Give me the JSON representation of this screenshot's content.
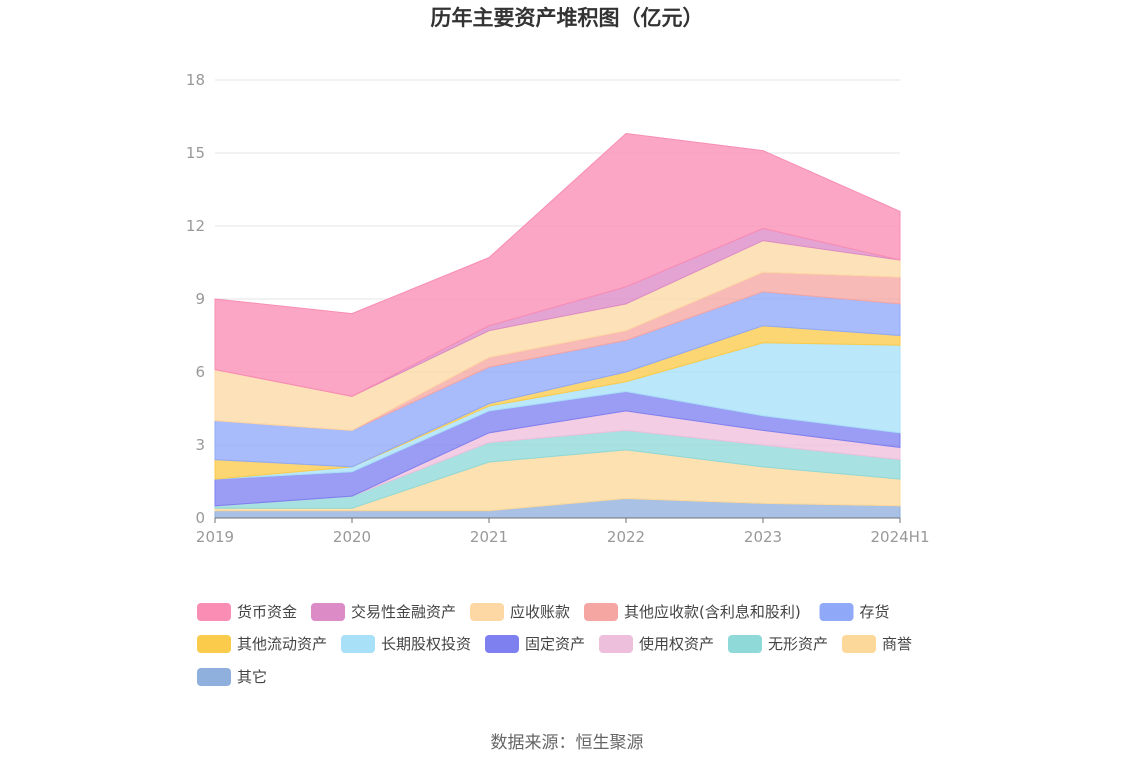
{
  "chart_data": {
    "type": "area",
    "stacked": true,
    "title": "历年主要资产堆积图（亿元）",
    "categories": [
      "2019",
      "2020",
      "2021",
      "2022",
      "2023",
      "2024H1"
    ],
    "y_ticks": [
      "0",
      "3",
      "6",
      "9",
      "12",
      "15",
      "18"
    ],
    "ylim": [
      0,
      18
    ],
    "grid": true,
    "legend_position": "bottom",
    "series": [
      {
        "name": "其它",
        "color": "#8fb0dc",
        "values": [
          0.3,
          0.3,
          0.3,
          0.8,
          0.6,
          0.5
        ]
      },
      {
        "name": "商誉",
        "color": "#fcd89a",
        "values": [
          0.1,
          0.1,
          2.0,
          2.0,
          1.5,
          1.1
        ]
      },
      {
        "name": "无形资产",
        "color": "#8fd9d9",
        "values": [
          0.1,
          0.5,
          0.8,
          0.8,
          0.9,
          0.8
        ]
      },
      {
        "name": "使用权资产",
        "color": "#eebfdc",
        "values": [
          0.0,
          0.0,
          0.4,
          0.8,
          0.6,
          0.5
        ]
      },
      {
        "name": "固定资产",
        "color": "#7f80f0",
        "values": [
          1.1,
          1.0,
          0.9,
          0.8,
          0.6,
          0.6
        ]
      },
      {
        "name": "长期股权投资",
        "color": "#a8e0f8",
        "values": [
          0.0,
          0.2,
          0.2,
          0.4,
          3.0,
          3.6
        ]
      },
      {
        "name": "其他流动资产",
        "color": "#fbcb4b",
        "values": [
          0.8,
          0.0,
          0.1,
          0.4,
          0.7,
          0.4
        ]
      },
      {
        "name": "存货",
        "color": "#8fa8f8",
        "values": [
          1.6,
          1.5,
          1.5,
          1.3,
          1.4,
          1.3
        ]
      },
      {
        "name": "其他应收款(含利息和股利)",
        "color": "#f5a6a3",
        "values": [
          0.0,
          0.0,
          0.4,
          0.4,
          0.8,
          1.1
        ]
      },
      {
        "name": "应收账款",
        "color": "#fdd8a4",
        "values": [
          2.1,
          1.4,
          1.1,
          1.1,
          1.3,
          0.7
        ]
      },
      {
        "name": "交易性金融资产",
        "color": "#dc8bc6",
        "values": [
          0.0,
          0.0,
          0.2,
          0.7,
          0.5,
          0.0
        ]
      },
      {
        "name": "货币资金",
        "color": "#f98db4",
        "values": [
          2.9,
          3.4,
          2.8,
          6.3,
          3.2,
          2.0
        ]
      }
    ],
    "legend_order": [
      "货币资金",
      "交易性金融资产",
      "应收账款",
      "其他应收款(含利息和股利)",
      "存货",
      "其他流动资产",
      "长期股权投资",
      "固定资产",
      "使用权资产",
      "无形资产",
      "商誉",
      "其它"
    ]
  },
  "source": "数据来源：恒生聚源"
}
